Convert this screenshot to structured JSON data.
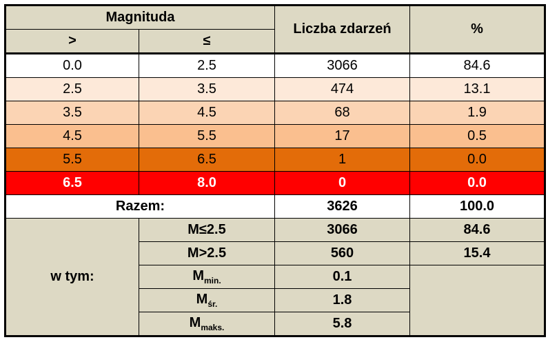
{
  "header": {
    "magnitude": "Magnituda",
    "gt": ">",
    "le": "≤",
    "count": "Liczba zdarzeń",
    "percent": "%"
  },
  "rows": [
    [
      "0.0",
      "2.5",
      "3066",
      "84.6"
    ],
    [
      "2.5",
      "3.5",
      "474",
      "13.1"
    ],
    [
      "3.5",
      "4.5",
      "68",
      "1.9"
    ],
    [
      "4.5",
      "5.5",
      "17",
      "0.5"
    ],
    [
      "5.5",
      "6.5",
      "1",
      "0.0"
    ],
    [
      "6.5",
      "8.0",
      "0",
      "0.0"
    ]
  ],
  "total": {
    "label": "Razem:",
    "count": "3626",
    "percent": "100.0"
  },
  "breakdown": {
    "label": "w tym:",
    "items": [
      {
        "label": "M≤2.5",
        "count": "3066",
        "percent": "84.6"
      },
      {
        "label": "M>2.5",
        "count": "560",
        "percent": "15.4"
      }
    ],
    "stats": [
      {
        "symbol": "M",
        "sub": "min.",
        "value": "0.1"
      },
      {
        "symbol": "M",
        "sub": "śr.",
        "value": "1.8"
      },
      {
        "symbol": "M",
        "sub": "maks.",
        "value": "5.8"
      }
    ]
  }
}
